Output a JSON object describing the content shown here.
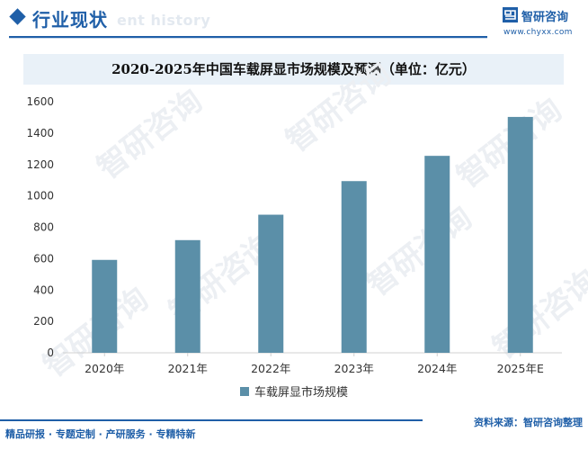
{
  "header": {
    "section_title": "行业现状",
    "watermark_text": "ent history",
    "logo_name": "智研咨询",
    "logo_url": "www.chyxx.com",
    "brand_color": "#1f5fa8"
  },
  "footer": {
    "left_text": "精品研报 · 专题定制 · 产研服务 · 专精特新",
    "source_text": "资料来源：智研咨询整理"
  },
  "watermark": {
    "text": "智研咨询",
    "color": "#eceff3"
  },
  "chart_data": {
    "type": "bar",
    "title": "2020-2025年中国车载屏显市场规模及预测（单位：亿元）",
    "categories": [
      "2020年",
      "2021年",
      "2022年",
      "2023年",
      "2024年",
      "2025年E"
    ],
    "series": [
      {
        "name": "车载屏显市场规模",
        "values": [
          592,
          718,
          880,
          1094,
          1255,
          1503
        ],
        "color": "#5b8fa8"
      }
    ],
    "yticks": [
      "0",
      "200",
      "400",
      "600",
      "800",
      "1000",
      "1200",
      "1400",
      "1600"
    ],
    "ylim": [
      0,
      1600
    ],
    "xlabel": "",
    "ylabel": "",
    "grid": false,
    "legend_position": "bottom-center"
  }
}
